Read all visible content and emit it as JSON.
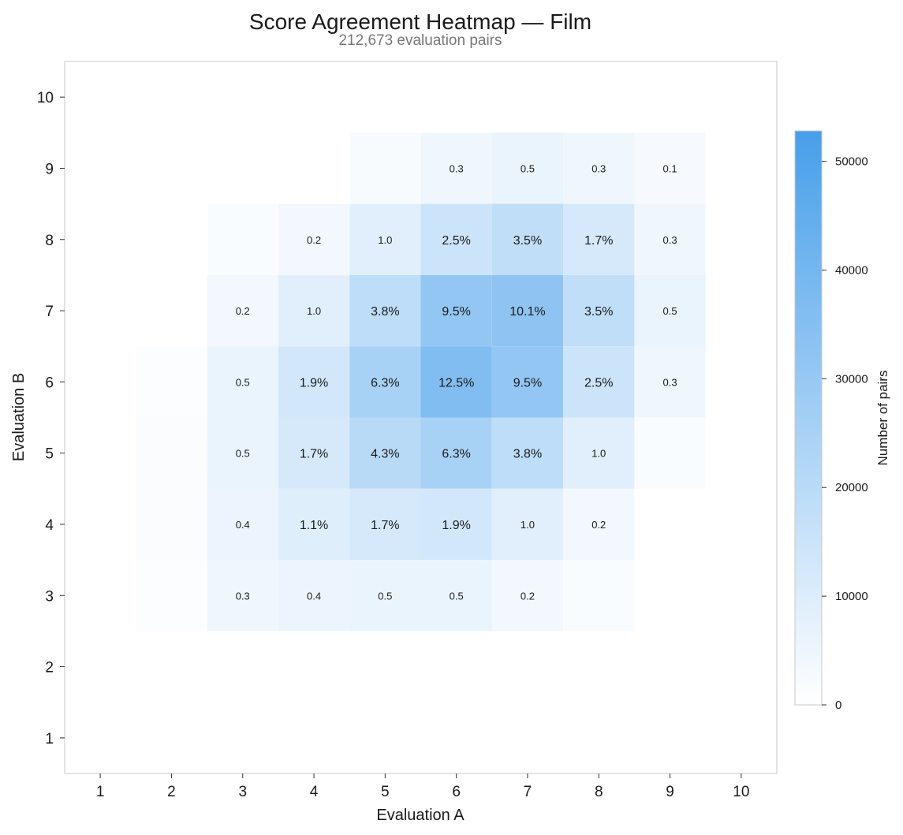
{
  "chart_data": {
    "type": "heatmap",
    "title": "Score Agreement Heatmap — Film",
    "subtitle": "212,673 evaluation pairs",
    "xlabel": "Evaluation A",
    "ylabel": "Evaluation B",
    "x_ticks": [
      "1",
      "2",
      "3",
      "4",
      "5",
      "6",
      "7",
      "8",
      "9",
      "10"
    ],
    "y_ticks": [
      "1",
      "2",
      "3",
      "4",
      "5",
      "6",
      "7",
      "8",
      "9",
      "10"
    ],
    "colorbar": {
      "label": "Number of pairs",
      "min": 0,
      "max": 52800,
      "ticks": [
        "0",
        "10000",
        "20000",
        "30000",
        "40000",
        "50000"
      ],
      "color_low": "#ffffff",
      "color_high": "#479fea"
    },
    "cells": [
      {
        "a": 6,
        "b": 9,
        "value": 640,
        "label": "0.3"
      },
      {
        "a": 7,
        "b": 9,
        "value": 1060,
        "label": "0.5"
      },
      {
        "a": 8,
        "b": 9,
        "value": 640,
        "label": "0.3"
      },
      {
        "a": 9,
        "b": 9,
        "value": 210,
        "label": "0.1"
      },
      {
        "a": 4,
        "b": 8,
        "value": 430,
        "label": "0.2"
      },
      {
        "a": 5,
        "b": 8,
        "value": 2130,
        "label": "1.0"
      },
      {
        "a": 6,
        "b": 8,
        "value": 5320,
        "label": "2.5%"
      },
      {
        "a": 7,
        "b": 8,
        "value": 7440,
        "label": "3.5%"
      },
      {
        "a": 8,
        "b": 8,
        "value": 3620,
        "label": "1.7%"
      },
      {
        "a": 9,
        "b": 8,
        "value": 640,
        "label": "0.3"
      },
      {
        "a": 3,
        "b": 7,
        "value": 430,
        "label": "0.2"
      },
      {
        "a": 4,
        "b": 7,
        "value": 2130,
        "label": "1.0"
      },
      {
        "a": 5,
        "b": 7,
        "value": 8080,
        "label": "3.8%"
      },
      {
        "a": 6,
        "b": 7,
        "value": 20200,
        "label": "9.5%"
      },
      {
        "a": 7,
        "b": 7,
        "value": 21480,
        "label": "10.1%"
      },
      {
        "a": 8,
        "b": 7,
        "value": 7440,
        "label": "3.5%"
      },
      {
        "a": 9,
        "b": 7,
        "value": 1060,
        "label": "0.5"
      },
      {
        "a": 3,
        "b": 6,
        "value": 1060,
        "label": "0.5"
      },
      {
        "a": 4,
        "b": 6,
        "value": 4040,
        "label": "1.9%"
      },
      {
        "a": 5,
        "b": 6,
        "value": 13400,
        "label": "6.3%"
      },
      {
        "a": 6,
        "b": 6,
        "value": 26580,
        "label": "12.5%"
      },
      {
        "a": 7,
        "b": 6,
        "value": 20200,
        "label": "9.5%"
      },
      {
        "a": 8,
        "b": 6,
        "value": 5320,
        "label": "2.5%"
      },
      {
        "a": 9,
        "b": 6,
        "value": 640,
        "label": "0.3"
      },
      {
        "a": 3,
        "b": 5,
        "value": 1060,
        "label": "0.5"
      },
      {
        "a": 4,
        "b": 5,
        "value": 3620,
        "label": "1.7%"
      },
      {
        "a": 5,
        "b": 5,
        "value": 9140,
        "label": "4.3%"
      },
      {
        "a": 6,
        "b": 5,
        "value": 13400,
        "label": "6.3%"
      },
      {
        "a": 7,
        "b": 5,
        "value": 8080,
        "label": "3.8%"
      },
      {
        "a": 8,
        "b": 5,
        "value": 2130,
        "label": "1.0"
      },
      {
        "a": 3,
        "b": 4,
        "value": 850,
        "label": "0.4"
      },
      {
        "a": 4,
        "b": 4,
        "value": 2340,
        "label": "1.1%"
      },
      {
        "a": 5,
        "b": 4,
        "value": 3620,
        "label": "1.7%"
      },
      {
        "a": 6,
        "b": 4,
        "value": 4040,
        "label": "1.9%"
      },
      {
        "a": 7,
        "b": 4,
        "value": 2130,
        "label": "1.0"
      },
      {
        "a": 8,
        "b": 4,
        "value": 430,
        "label": "0.2"
      },
      {
        "a": 3,
        "b": 3,
        "value": 640,
        "label": "0.3"
      },
      {
        "a": 4,
        "b": 3,
        "value": 850,
        "label": "0.4"
      },
      {
        "a": 5,
        "b": 3,
        "value": 1060,
        "label": "0.5"
      },
      {
        "a": 6,
        "b": 3,
        "value": 1060,
        "label": "0.5"
      },
      {
        "a": 7,
        "b": 3,
        "value": 430,
        "label": "0.2"
      },
      {
        "a": 2,
        "b": 3,
        "value": 60,
        "label": ""
      },
      {
        "a": 2,
        "b": 4,
        "value": 80,
        "label": ""
      },
      {
        "a": 2,
        "b": 5,
        "value": 80,
        "label": ""
      },
      {
        "a": 2,
        "b": 6,
        "value": 60,
        "label": ""
      },
      {
        "a": 5,
        "b": 9,
        "value": 150,
        "label": ""
      },
      {
        "a": 9,
        "b": 5,
        "value": 120,
        "label": ""
      },
      {
        "a": 8,
        "b": 3,
        "value": 100,
        "label": ""
      },
      {
        "a": 3,
        "b": 8,
        "value": 120,
        "label": ""
      }
    ]
  }
}
